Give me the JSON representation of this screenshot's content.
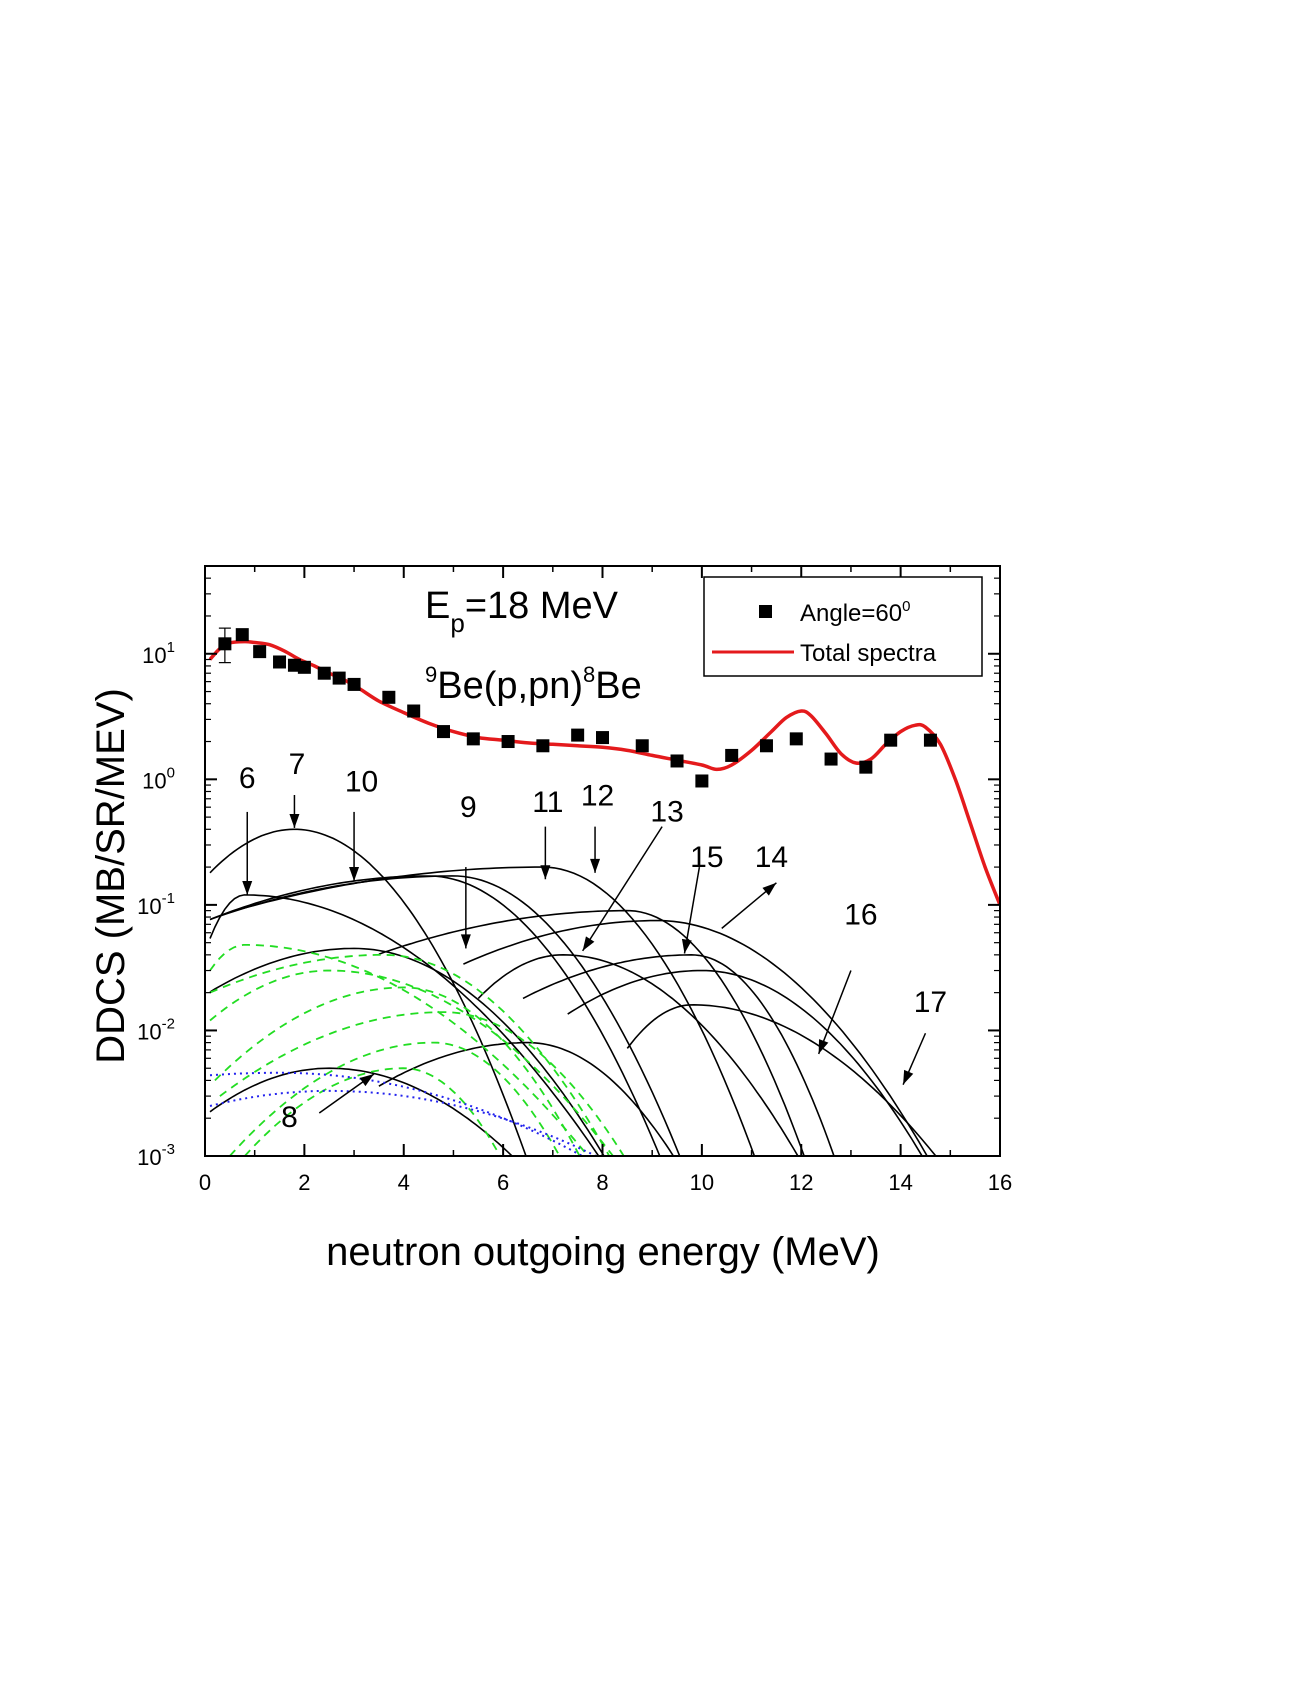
{
  "chart_data": {
    "type": "line",
    "x_scale": "linear",
    "y_scale": "log",
    "xlabel": "neutron outgoing energy (MeV)",
    "ylabel": "DDCS (MB/SR/MEV)",
    "xlim": [
      0,
      16
    ],
    "ylim": [
      0.001,
      50
    ],
    "x_ticks": [
      0,
      2,
      4,
      6,
      8,
      10,
      12,
      14,
      16
    ],
    "x_tick_labels": [
      "0",
      "2",
      "4",
      "6",
      "8",
      "10",
      "12",
      "14",
      "16"
    ],
    "y_ticks": [
      0.001,
      0.01,
      0.1,
      1,
      10
    ],
    "y_tick_labels": [
      {
        "base": "10",
        "exp": "-3"
      },
      {
        "base": "10",
        "exp": "-2"
      },
      {
        "base": "10",
        "exp": "-1"
      },
      {
        "base": "10",
        "exp": "0"
      },
      {
        "base": "10",
        "exp": "1"
      }
    ],
    "annotation_energy": {
      "main": "E",
      "sub": "p",
      "rest": "=18 MeV"
    },
    "annotation_reaction": {
      "pre_sup": "9",
      "main": "Be(p,pn)",
      "mid_sup": "8",
      "end": "Be"
    },
    "legend": {
      "placement": "top-right",
      "entries": [
        {
          "marker": "square",
          "text": "Angle=60",
          "sup": "0"
        },
        {
          "marker": "line",
          "text": "Total spectra"
        }
      ]
    },
    "colors": {
      "total": "#e41a1c",
      "experiment": "#000000",
      "components": "#000000",
      "green_dashed": "#22dd22",
      "blue_dotted": "#2222ee"
    },
    "experiment": {
      "name": "Angle=60",
      "x": [
        0.4,
        0.75,
        1.1,
        1.5,
        1.8,
        2.0,
        2.4,
        2.7,
        3.0,
        3.7,
        4.2,
        4.8,
        5.4,
        6.1,
        6.8,
        7.5,
        8.0,
        8.8,
        9.5,
        10.0,
        10.6,
        11.3,
        11.9,
        12.6,
        13.3,
        13.8,
        14.6
      ],
      "y": [
        12.0,
        14.2,
        10.4,
        8.6,
        8.1,
        7.8,
        7.0,
        6.4,
        5.7,
        4.5,
        3.5,
        2.4,
        2.1,
        2.0,
        1.85,
        2.25,
        2.15,
        1.85,
        1.4,
        0.97,
        1.55,
        1.85,
        2.1,
        1.45,
        1.25,
        2.05,
        2.05
      ]
    },
    "total": {
      "name": "Total spectra",
      "x": [
        0.1,
        0.3,
        0.5,
        0.8,
        1.0,
        1.3,
        1.6,
        1.9,
        2.2,
        2.5,
        2.8,
        3.1,
        3.5,
        4.0,
        4.5,
        5.0,
        5.5,
        6.0,
        6.5,
        7.0,
        7.5,
        8.0,
        8.5,
        9.0,
        9.5,
        10.0,
        10.3,
        10.6,
        11.0,
        11.4,
        11.7,
        12.0,
        12.2,
        12.5,
        12.8,
        13.1,
        13.4,
        13.7,
        14.0,
        14.3,
        14.5,
        14.8,
        15.1,
        15.4,
        15.7,
        16.0
      ],
      "y": [
        9.0,
        11.0,
        12.2,
        12.5,
        12.3,
        11.8,
        10.5,
        9.0,
        8.0,
        7.0,
        6.2,
        5.3,
        4.2,
        3.4,
        2.8,
        2.4,
        2.15,
        2.05,
        1.95,
        1.9,
        1.85,
        1.8,
        1.7,
        1.55,
        1.42,
        1.3,
        1.2,
        1.3,
        1.7,
        2.4,
        3.1,
        3.5,
        3.2,
        2.3,
        1.6,
        1.35,
        1.45,
        1.9,
        2.4,
        2.7,
        2.6,
        1.9,
        1.0,
        0.45,
        0.2,
        0.1
      ]
    },
    "components": [
      {
        "label": "7",
        "x0": 0.1,
        "x1": 6.5,
        "peak_x": 1.8,
        "peak_y": 0.4,
        "y_at_x1": 0.001
      },
      {
        "label": "6",
        "x0": 0.1,
        "x1": 8.0,
        "peak_x": 0.8,
        "peak_y": 0.12,
        "y_at_x1": 0.001
      },
      {
        "label": "10",
        "x0": 0.1,
        "x1": 9.2,
        "peak_x": 4.5,
        "peak_y": 0.17,
        "y_at_x1": 0.001
      },
      {
        "label": "",
        "x0": 0.1,
        "x1": 9.6,
        "peak_x": 5.0,
        "peak_y": 0.17,
        "y_at_x1": 0.001
      },
      {
        "label": "11",
        "x0": 0.6,
        "x1": 11.1,
        "peak_x": 6.8,
        "peak_y": 0.2,
        "y_at_x1": 0.001
      },
      {
        "label": "9",
        "x0": 0.1,
        "x1": 8.1,
        "peak_x": 3.0,
        "peak_y": 0.045,
        "y_at_x1": 0.001
      },
      {
        "label": "12",
        "x0": 3.5,
        "x1": 12.1,
        "peak_x": 8.5,
        "peak_y": 0.09,
        "y_at_x1": 0.001
      },
      {
        "label": "14",
        "x0": 5.2,
        "x1": 14.6,
        "peak_x": 9.1,
        "peak_y": 0.075,
        "y_at_x1": 0.001
      },
      {
        "label": "13",
        "x0": 5.5,
        "x1": 12.0,
        "peak_x": 7.2,
        "peak_y": 0.04,
        "y_at_x1": 0.001
      },
      {
        "label": "15",
        "x0": 6.4,
        "x1": 12.7,
        "peak_x": 9.8,
        "peak_y": 0.04,
        "y_at_x1": 0.001
      },
      {
        "label": "16",
        "x0": 7.3,
        "x1": 14.5,
        "peak_x": 10.0,
        "peak_y": 0.03,
        "y_at_x1": 0.001
      },
      {
        "label": "17",
        "x0": 8.5,
        "x1": 14.8,
        "peak_x": 9.8,
        "peak_y": 0.016,
        "y_at_x1": 0.001
      },
      {
        "label": "",
        "x0": 3.5,
        "x1": 9.5,
        "peak_x": 6.5,
        "peak_y": 0.008,
        "y_at_x1": 0.001
      },
      {
        "label": "8",
        "x0": 0.1,
        "x1": 6.3,
        "peak_x": 2.5,
        "peak_y": 0.005,
        "y_at_x1": 0.001
      }
    ],
    "green_components": [
      {
        "x0": 0.1,
        "x1": 7.8,
        "peak_x": 0.8,
        "peak_y": 0.048,
        "y0": 0.03,
        "y1": 0.001
      },
      {
        "x0": 0.1,
        "x1": 8.2,
        "peak_x": 3.6,
        "peak_y": 0.04,
        "y0": 0.02,
        "y1": 0.001
      },
      {
        "x0": 0.1,
        "x1": 8.3,
        "peak_x": 2.5,
        "peak_y": 0.03,
        "y0": 0.012,
        "y1": 0.001
      },
      {
        "x0": 0.2,
        "x1": 7.6,
        "peak_x": 4.0,
        "peak_y": 0.022,
        "y0": 0.004,
        "y1": 0.001
      },
      {
        "x0": 0.3,
        "x1": 8.5,
        "peak_x": 4.8,
        "peak_y": 0.014,
        "y0": 0.003,
        "y1": 0.001
      },
      {
        "x0": 0.5,
        "x1": 7.2,
        "peak_x": 4.6,
        "peak_y": 0.008,
        "y0": 0.001,
        "y1": 0.001
      },
      {
        "x0": 0.8,
        "x1": 6.0,
        "peak_x": 4.0,
        "peak_y": 0.005,
        "y0": 0.001,
        "y1": 0.001
      }
    ],
    "blue_components": [
      {
        "x0": 0.1,
        "x1": 7.8,
        "peak_x": 1.5,
        "peak_y": 0.0046,
        "y0": 0.0044,
        "y1": 0.001
      },
      {
        "x0": 0.1,
        "x1": 8.1,
        "peak_x": 2.5,
        "peak_y": 0.0033,
        "y0": 0.0025,
        "y1": 0.001
      }
    ],
    "arrows": [
      {
        "label": "6",
        "from": [
          0.85,
          0.55
        ],
        "to": [
          0.85,
          0.12
        ]
      },
      {
        "label": "7",
        "from": [
          1.8,
          0.75
        ],
        "to": [
          1.8,
          0.41
        ]
      },
      {
        "label": "10",
        "from": [
          3.0,
          0.55
        ],
        "to": [
          3.0,
          0.155
        ]
      },
      {
        "label": "9",
        "from": [
          5.25,
          0.2
        ],
        "to": [
          5.25,
          0.045
        ]
      },
      {
        "label": "11",
        "from": [
          6.85,
          0.42
        ],
        "to": [
          6.85,
          0.16
        ]
      },
      {
        "label": "12",
        "from": [
          7.85,
          0.42
        ],
        "to": [
          7.85,
          0.18
        ]
      },
      {
        "label": "13",
        "from": [
          9.2,
          0.42
        ],
        "to": [
          7.6,
          0.043
        ]
      },
      {
        "label": "15",
        "from": [
          9.95,
          0.2
        ],
        "to": [
          9.65,
          0.041
        ]
      },
      {
        "label": "14",
        "from": [
          10.4,
          0.065
        ],
        "to": [
          11.5,
          0.15
        ]
      },
      {
        "label": "16",
        "from": [
          13.0,
          0.03
        ],
        "to": [
          12.35,
          0.0065
        ]
      },
      {
        "label": "17",
        "from": [
          14.5,
          0.0095
        ],
        "to": [
          14.05,
          0.0037
        ]
      },
      {
        "label": "8",
        "from": [
          2.3,
          0.0022
        ],
        "to": [
          3.4,
          0.0045
        ]
      }
    ],
    "curve_labels": [
      {
        "text": "6",
        "x": 0.85,
        "y": 0.85
      },
      {
        "text": "7",
        "x": 1.85,
        "y": 1.1
      },
      {
        "text": "10",
        "x": 3.15,
        "y": 0.8
      },
      {
        "text": "9",
        "x": 5.3,
        "y": 0.5
      },
      {
        "text": "11",
        "x": 6.9,
        "y": 0.55
      },
      {
        "text": "12",
        "x": 7.9,
        "y": 0.62
      },
      {
        "text": "13",
        "x": 9.3,
        "y": 0.46
      },
      {
        "text": "15",
        "x": 10.1,
        "y": 0.2
      },
      {
        "text": "14",
        "x": 11.4,
        "y": 0.2
      },
      {
        "text": "16",
        "x": 13.2,
        "y": 0.07
      },
      {
        "text": "17",
        "x": 14.6,
        "y": 0.014
      },
      {
        "text": "8",
        "x": 1.7,
        "y": 0.0017
      }
    ],
    "error_bar": {
      "x": 0.4,
      "y_low": 8.5,
      "y_high": 16.0
    }
  }
}
